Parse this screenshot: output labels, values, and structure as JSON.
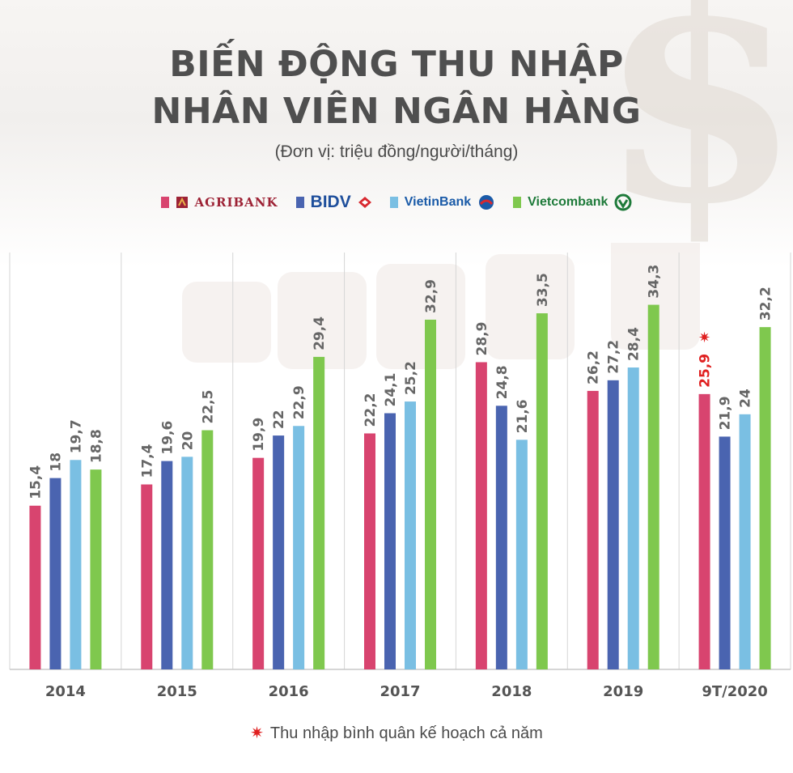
{
  "title_line1": "BIẾN ĐỘNG THU NHẬP",
  "title_line2": "NHÂN VIÊN NGÂN HÀNG",
  "subtitle": "(Đơn vị: triệu đồng/người/tháng)",
  "legend": [
    {
      "label": "AGRIBANK",
      "color": "#d8446f"
    },
    {
      "label": "BIDV",
      "color": "#4a64b0"
    },
    {
      "label": "VietinBank",
      "color": "#7abfe3"
    },
    {
      "label": "Vietcombank",
      "color": "#7fc84e"
    }
  ],
  "footnote": {
    "text": "Thu nhập bình quân kế hoạch cả năm",
    "marker_color": "#e02020"
  },
  "chart_data": {
    "type": "bar",
    "categories": [
      "2014",
      "2015",
      "2016",
      "2017",
      "2018",
      "2019",
      "9T/2020"
    ],
    "series": [
      {
        "name": "AGRIBANK",
        "color": "#d8446f",
        "values": [
          15.4,
          17.4,
          19.9,
          22.2,
          28.9,
          26.2,
          25.9
        ]
      },
      {
        "name": "BIDV",
        "color": "#4a64b0",
        "values": [
          18,
          19.6,
          22,
          24.1,
          24.8,
          27.2,
          21.9
        ]
      },
      {
        "name": "VietinBank",
        "color": "#7abfe3",
        "values": [
          19.7,
          20,
          22.9,
          25.2,
          21.6,
          28.4,
          24
        ]
      },
      {
        "name": "Vietcombank",
        "color": "#7fc84e",
        "values": [
          18.8,
          22.5,
          29.4,
          32.9,
          33.5,
          34.3,
          32.2
        ]
      }
    ],
    "value_labels": [
      [
        "15,4",
        "17,4",
        "19,9",
        "22,2",
        "28,9",
        "26,2",
        "25,9"
      ],
      [
        "18",
        "19,6",
        "22",
        "24,1",
        "24,8",
        "27,2",
        "21,9"
      ],
      [
        "19,7",
        "20",
        "22,9",
        "25,2",
        "21,6",
        "28,4",
        "24"
      ],
      [
        "18,8",
        "22,5",
        "29,4",
        "32,9",
        "33,5",
        "34,3",
        "32,2"
      ]
    ],
    "highlight": {
      "series_index": 0,
      "category_index": 6,
      "label_color": "#e02020",
      "marker": "✷"
    },
    "ylim": [
      0,
      40
    ],
    "grid": "vertical category separators",
    "label_color": "#666666"
  }
}
